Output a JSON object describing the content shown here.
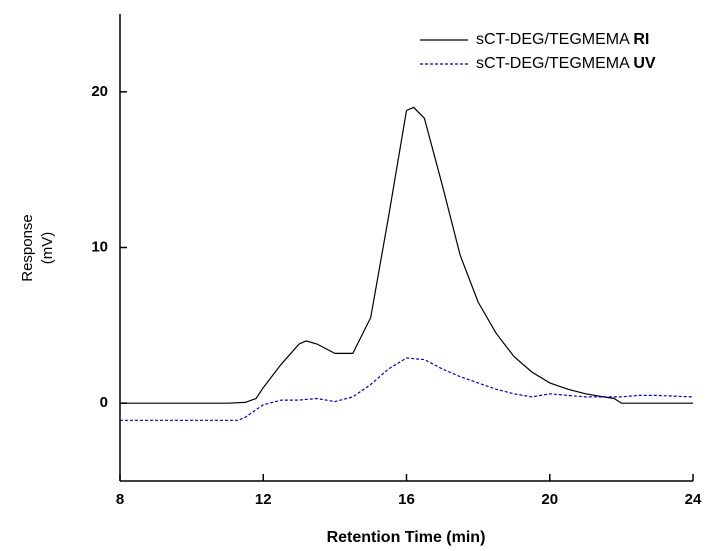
{
  "chart_data": {
    "type": "line",
    "xlabel": "Retention Time (min)",
    "ylabel": [
      "Response",
      "(mV)"
    ],
    "xlim": [
      8,
      24
    ],
    "xticks": [
      8,
      12,
      16,
      20,
      24
    ],
    "ylim": [
      -5,
      25
    ],
    "yticks": [
      0,
      10,
      20
    ],
    "legend": "upper right",
    "series": [
      {
        "name": "sCT-DEG/TEGMEMA RI",
        "color": "#000000",
        "dash": false,
        "x": [
          8,
          9,
          10,
          11,
          11.5,
          11.8,
          12,
          12.5,
          13,
          13.2,
          13.5,
          14,
          14.5,
          15,
          15.5,
          16,
          16.2,
          16.5,
          17,
          17.5,
          18,
          18.5,
          19,
          19.5,
          20,
          20.5,
          21,
          21.5,
          21.8,
          22,
          23,
          24
        ],
        "values": [
          0,
          0,
          0,
          0,
          0.05,
          0.3,
          1,
          2.5,
          3.8,
          4,
          3.8,
          3.2,
          3.2,
          5.5,
          12,
          18.8,
          19,
          18.3,
          14,
          9.5,
          6.5,
          4.5,
          3,
          2,
          1.3,
          0.9,
          0.6,
          0.4,
          0.3,
          0,
          0,
          0
        ]
      },
      {
        "name": "sCT-DEG/TEGMEMA UV",
        "color": "#0000cc",
        "dash": true,
        "x": [
          8,
          9,
          10,
          11,
          11.3,
          11.5,
          12,
          12.5,
          13,
          13.5,
          14,
          14.5,
          15,
          15.5,
          16,
          16.5,
          17,
          17.5,
          18,
          18.5,
          19,
          19.5,
          20,
          20.5,
          21,
          22,
          22.5,
          23,
          24
        ],
        "values": [
          -1.1,
          -1.1,
          -1.1,
          -1.1,
          -1.1,
          -0.9,
          -0.1,
          0.2,
          0.2,
          0.3,
          0.1,
          0.4,
          1.2,
          2.2,
          2.9,
          2.8,
          2.2,
          1.7,
          1.3,
          0.9,
          0.6,
          0.4,
          0.6,
          0.5,
          0.4,
          0.4,
          0.5,
          0.5,
          0.4
        ]
      }
    ]
  }
}
